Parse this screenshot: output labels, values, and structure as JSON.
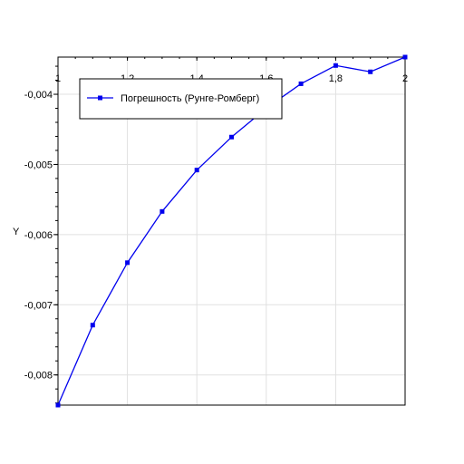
{
  "chart_data": {
    "type": "line",
    "title": "",
    "xlabel": "",
    "ylabel": "Y",
    "xlim": [
      1,
      2
    ],
    "ylim": [
      -0.00843,
      -0.00347
    ],
    "x_ticks": [
      1,
      1.2,
      1.4,
      1.6,
      1.8,
      2
    ],
    "x_tick_labels": [
      "1",
      "1,2",
      "1,4",
      "1,6",
      "1,8",
      "2"
    ],
    "y_ticks": [
      -0.008,
      -0.007,
      -0.006,
      -0.005,
      -0.004
    ],
    "y_tick_labels": [
      "-0,008",
      "-0,007",
      "-0,006",
      "-0,005",
      "-0,004"
    ],
    "grid": true,
    "legend_position": "top-left",
    "series": [
      {
        "name": "Погрешность (Рунге-Ромберг)",
        "color": "#0000ee",
        "marker": "square",
        "x": [
          1,
          1.1,
          1.2,
          1.3,
          1.4,
          1.5,
          1.6,
          1.7,
          1.8,
          1.9,
          2
        ],
        "y": [
          -0.00843,
          -0.00729,
          -0.0064,
          -0.00567,
          -0.00508,
          -0.00461,
          -0.0042,
          -0.00385,
          -0.00359,
          -0.00368,
          -0.00347
        ]
      }
    ]
  }
}
